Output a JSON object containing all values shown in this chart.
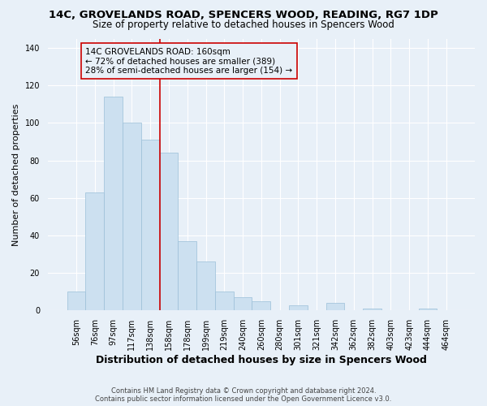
{
  "title": "14C, GROVELANDS ROAD, SPENCERS WOOD, READING, RG7 1DP",
  "subtitle": "Size of property relative to detached houses in Spencers Wood",
  "xlabel": "Distribution of detached houses by size in Spencers Wood",
  "ylabel": "Number of detached properties",
  "footnote1": "Contains HM Land Registry data © Crown copyright and database right 2024.",
  "footnote2": "Contains public sector information licensed under the Open Government Licence v3.0.",
  "bins": [
    "56sqm",
    "76sqm",
    "97sqm",
    "117sqm",
    "138sqm",
    "158sqm",
    "178sqm",
    "199sqm",
    "219sqm",
    "240sqm",
    "260sqm",
    "280sqm",
    "301sqm",
    "321sqm",
    "342sqm",
    "362sqm",
    "382sqm",
    "403sqm",
    "423sqm",
    "444sqm",
    "464sqm"
  ],
  "values": [
    10,
    63,
    114,
    100,
    91,
    84,
    37,
    26,
    10,
    7,
    5,
    0,
    3,
    0,
    4,
    0,
    1,
    0,
    0,
    1,
    0
  ],
  "bar_color": "#cce0f0",
  "bar_edge_color": "#9bbfd8",
  "vline_x_index": 5,
  "vline_color": "#cc0000",
  "annotation_text": "14C GROVELANDS ROAD: 160sqm\n← 72% of detached houses are smaller (389)\n28% of semi-detached houses are larger (154) →",
  "annotation_box_color": "#cc0000",
  "ylim": [
    0,
    145
  ],
  "yticks": [
    0,
    20,
    40,
    60,
    80,
    100,
    120,
    140
  ],
  "bg_color": "#e8f0f8",
  "grid_color": "#ffffff",
  "title_fontsize": 9.5,
  "subtitle_fontsize": 8.5,
  "xlabel_fontsize": 9,
  "ylabel_fontsize": 8,
  "tick_fontsize": 7,
  "footnote_fontsize": 6,
  "annotation_fontsize": 7.5
}
